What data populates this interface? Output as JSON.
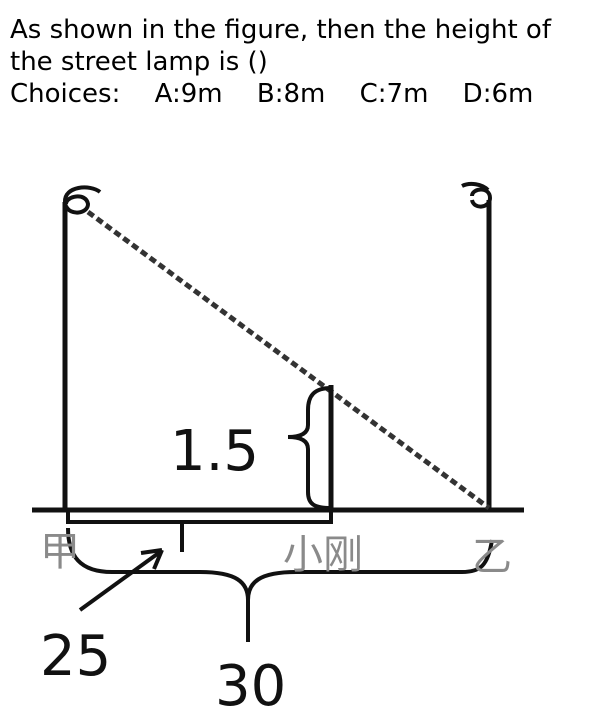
{
  "question": {
    "line1": "As shown in the figure, then the height of",
    "line2": "the street lamp is ()",
    "choices_prefix": "Choices:",
    "choices": [
      "A:9m",
      "B:8m",
      "C:7m",
      "D:6m"
    ]
  },
  "figure": {
    "label_height": "1.5",
    "label_distance_jia_xiaogang": "25",
    "label_distance_jia_yi": "30",
    "label_jia": "甲",
    "label_xiaogang": "小刚",
    "label_yi": "乙"
  }
}
